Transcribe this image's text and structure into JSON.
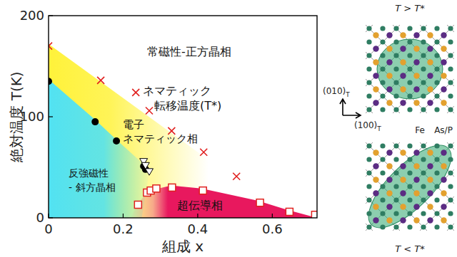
{
  "chart_data": {
    "type": "scatter",
    "x_label": "組成 x",
    "y_label": "絶対温度 T(K)",
    "xlim": [
      0,
      0.72
    ],
    "xticks": [
      0,
      0.2,
      0.4,
      0.6
    ],
    "ylim": [
      0,
      200
    ],
    "yticks": [
      0,
      100,
      200
    ],
    "grid": false,
    "annotations": [
      [
        "常磁性-正方晶相"
      ],
      [
        "ネマティック",
        "転移温度(T*)"
      ],
      [
        "電子",
        "ネマティック相"
      ],
      [
        "反強磁性",
        "- 斜方晶相"
      ],
      [
        "超伝導相"
      ]
    ],
    "series": [
      {
        "type": "area",
        "color": "#fff23a",
        "x": [
          0,
          0.55,
          0.55,
          0
        ],
        "values": [
          172,
          25,
          0,
          0
        ]
      },
      {
        "type": "area",
        "color": "#52e2f2",
        "x": [
          0,
          0,
          0.125,
          0.18,
          0.255,
          0.27,
          0.25
        ],
        "values": [
          0,
          137,
          97,
          78,
          53,
          45,
          0
        ]
      },
      {
        "type": "area",
        "color": "#e8185e",
        "x": [
          0.22,
          0.24,
          0.27,
          0.33,
          0.41,
          0.56,
          0.64,
          0.72
        ],
        "values": [
          0,
          15,
          27,
          32,
          29,
          17,
          8,
          0
        ]
      },
      {
        "type": "scatter",
        "color": "#e0201e",
        "marker": "x",
        "x": [
          0,
          0.14,
          0.234,
          0.27,
          0.33,
          0.416,
          0.504
        ],
        "values": [
          170,
          136,
          124,
          106,
          86,
          65,
          41
        ]
      },
      {
        "type": "scatter",
        "color": "#000000",
        "marker": "circle",
        "x": [
          0,
          0.125,
          0.182,
          0.255,
          0.26
        ],
        "values": [
          135,
          95,
          76,
          51,
          48
        ]
      },
      {
        "type": "scatter",
        "color": "#000000",
        "marker": "triangle-down",
        "x": [
          0.255,
          0.26,
          0.27
        ],
        "values": [
          56,
          52,
          46
        ]
      },
      {
        "type": "scatter",
        "color": "#e0201e",
        "marker": "square",
        "x": [
          0.24,
          0.264,
          0.274,
          0.289,
          0.331,
          0.414,
          0.567,
          0.646,
          0.715
        ],
        "values": [
          13,
          25,
          27,
          29,
          30,
          27,
          15,
          6,
          3
        ]
      }
    ]
  },
  "diagram": {
    "panels": [
      {
        "label": "T > T*"
      },
      {
        "label": "T < T*"
      }
    ],
    "axes": [
      {
        "text": "(010)",
        "sub": "T"
      },
      {
        "text": "(100)",
        "sub": "T"
      }
    ],
    "atoms": [
      {
        "label": "Fe",
        "colors": [
          "#2f7d62"
        ]
      },
      {
        "label": "As/P",
        "colors": [
          "#e3a12f",
          "#5b2c83"
        ]
      }
    ]
  }
}
